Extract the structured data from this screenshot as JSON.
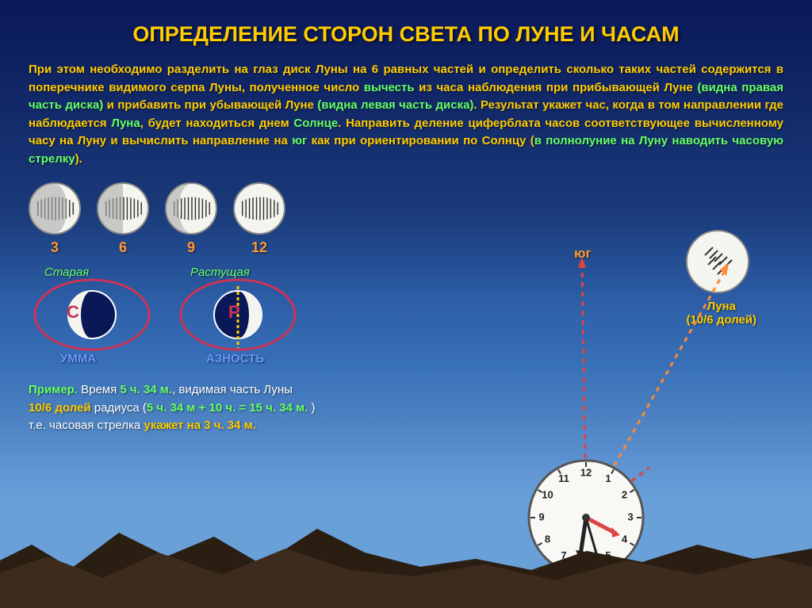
{
  "title": "ОПРЕДЕЛЕНИЕ СТОРОН СВЕТА ПО ЛУНЕ И ЧАСАМ",
  "desc": {
    "p1a": "При этом необходимо разделить на глаз диск Луны на ",
    "p1b": "6 равных частей",
    "p1c": " и определить сколько таких частей содержится в поперечнике видимого серпа Луны, полученное число ",
    "p1d": "вычесть",
    "p1e": " из часа наблюдения ",
    "p1f": "при прибывающей Луне ",
    "p1g": "(видна правая часть диска)",
    "p1h": " и ",
    "p1i": "прибавить при убывающей Луне ",
    "p1j": "(видна левая часть диска)",
    "p1k": ". Результат укажет час, когда в том направлении где наблюдается ",
    "p1l": "Луна",
    "p1m": ", будет находиться днем ",
    "p1n": "Солнце",
    "p1o": ". Направить деление циферблата часов соответствующее вычисленному часу на Луну и вычислить направление на ",
    "p1p": "юг",
    "p1q": " как при ориентировании по Солнцу (",
    "p1r": "в полнолуние  на Луну наводить часовую стрелку",
    "p1s": ")."
  },
  "phases": [
    {
      "num": "3",
      "dark_width": 48
    },
    {
      "num": "6",
      "dark_width": 32
    },
    {
      "num": "9",
      "dark_width": 16
    },
    {
      "num": "12",
      "dark_width": 0
    }
  ],
  "moon_old": {
    "top": "Старая",
    "bot": "УММА"
  },
  "moon_new": {
    "top": "Растущая",
    "bot": "АЗНОСТЬ"
  },
  "example": {
    "a": "Пример.",
    "b": " Время ",
    "c": "5 ч. 34 м.",
    "d": ", видимая часть Луны ",
    "e": "10/6 долей",
    "f": " радиуса (",
    "g": "5 ч. 34 м + 10 ч. = 15 ч. 34 м. ",
    "h": ") т.е. часовая стрелка ",
    "i": "укажет на 3 ч. 34 м."
  },
  "south": "юг",
  "moon_label": {
    "l1": "Луна",
    "l2": "(10/6 долей)"
  },
  "clock_numbers": [
    "12",
    "1",
    "2",
    "3",
    "4",
    "5",
    "6",
    "7",
    "8",
    "9",
    "10",
    "11"
  ],
  "colors": {
    "title": "#ffcc00",
    "green": "#66ff66",
    "orange": "#ff9933",
    "blue": "#6699ff",
    "red_line": "#dd4444",
    "orange_line": "#ff8833",
    "ellipse": "#cc3355",
    "moon_face": "#f5f5f0",
    "moon_dark": "#0a1858",
    "mountain": "#3d2c1d"
  }
}
